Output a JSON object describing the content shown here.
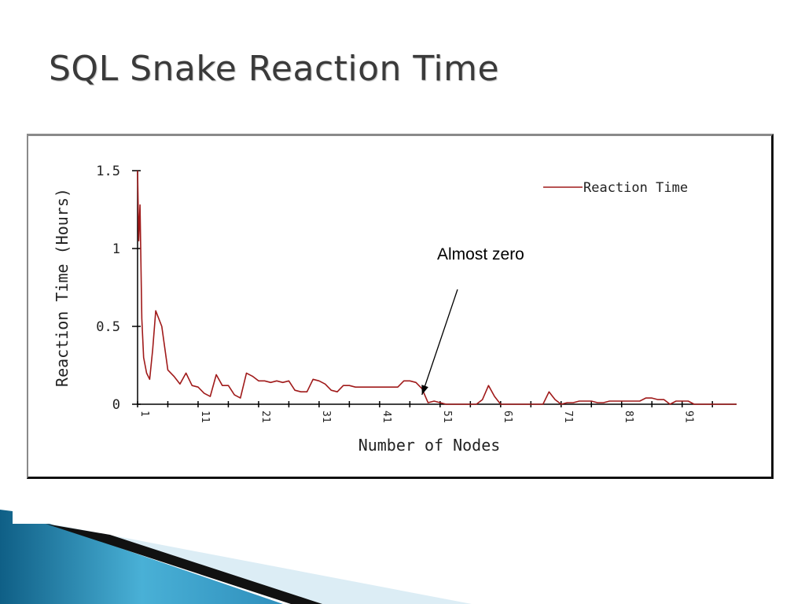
{
  "slide": {
    "title": "SQL Snake Reaction Time"
  },
  "annotation": {
    "text": "Almost zero",
    "target_x": 48,
    "target_y": 0.01
  },
  "colors": {
    "line": "#a01a1a",
    "accent_blue": "#3a9ec6",
    "accent_dark": "#111111"
  },
  "chart_data": {
    "type": "line",
    "title": "",
    "xlabel": "Number of Nodes",
    "ylabel": "Reaction Time (Hours)",
    "xlim": [
      1,
      100
    ],
    "ylim": [
      0,
      1.5
    ],
    "yticks": [
      0,
      0.5,
      1,
      1.5
    ],
    "ytick_labels": [
      "0",
      "0.5",
      "1",
      "1.5"
    ],
    "xticks": [
      1,
      11,
      21,
      31,
      41,
      51,
      61,
      71,
      81,
      91
    ],
    "xtick_labels": [
      "1",
      "11",
      "21",
      "31",
      "41",
      "51",
      "61",
      "71",
      "81",
      "91"
    ],
    "grid": false,
    "legend_position": "top-right",
    "series": [
      {
        "name": "Reaction Time",
        "points": [
          [
            1,
            1.5
          ],
          [
            1.2,
            1.05
          ],
          [
            1.4,
            1.28
          ],
          [
            1.7,
            0.55
          ],
          [
            2,
            0.3
          ],
          [
            2.5,
            0.2
          ],
          [
            3,
            0.16
          ],
          [
            3.5,
            0.35
          ],
          [
            4,
            0.6
          ],
          [
            5,
            0.5
          ],
          [
            6,
            0.22
          ],
          [
            7,
            0.18
          ],
          [
            8,
            0.13
          ],
          [
            9,
            0.2
          ],
          [
            10,
            0.12
          ],
          [
            11,
            0.11
          ],
          [
            12,
            0.07
          ],
          [
            13,
            0.05
          ],
          [
            14,
            0.19
          ],
          [
            15,
            0.12
          ],
          [
            16,
            0.12
          ],
          [
            17,
            0.06
          ],
          [
            18,
            0.04
          ],
          [
            19,
            0.2
          ],
          [
            20,
            0.18
          ],
          [
            21,
            0.15
          ],
          [
            22,
            0.15
          ],
          [
            23,
            0.14
          ],
          [
            24,
            0.15
          ],
          [
            25,
            0.14
          ],
          [
            26,
            0.15
          ],
          [
            27,
            0.09
          ],
          [
            28,
            0.08
          ],
          [
            29,
            0.08
          ],
          [
            30,
            0.16
          ],
          [
            31,
            0.15
          ],
          [
            32,
            0.13
          ],
          [
            33,
            0.09
          ],
          [
            34,
            0.08
          ],
          [
            35,
            0.12
          ],
          [
            36,
            0.12
          ],
          [
            37,
            0.11
          ],
          [
            38,
            0.11
          ],
          [
            39,
            0.11
          ],
          [
            40,
            0.11
          ],
          [
            41,
            0.11
          ],
          [
            42,
            0.11
          ],
          [
            43,
            0.11
          ],
          [
            44,
            0.11
          ],
          [
            45,
            0.15
          ],
          [
            46,
            0.15
          ],
          [
            47,
            0.14
          ],
          [
            48,
            0.1
          ],
          [
            49,
            0.01
          ],
          [
            50,
            0.02
          ],
          [
            51,
            0.01
          ],
          [
            52,
            0.0
          ],
          [
            53,
            0.0
          ],
          [
            54,
            0.0
          ],
          [
            55,
            0.0
          ],
          [
            56,
            0.0
          ],
          [
            57,
            0.0
          ],
          [
            58,
            0.03
          ],
          [
            59,
            0.12
          ],
          [
            60,
            0.05
          ],
          [
            61,
            0.0
          ],
          [
            62,
            0.0
          ],
          [
            63,
            0.0
          ],
          [
            64,
            0.0
          ],
          [
            65,
            0.0
          ],
          [
            66,
            0.0
          ],
          [
            67,
            0.0
          ],
          [
            68,
            0.0
          ],
          [
            69,
            0.08
          ],
          [
            70,
            0.03
          ],
          [
            71,
            0.0
          ],
          [
            72,
            0.01
          ],
          [
            73,
            0.01
          ],
          [
            74,
            0.02
          ],
          [
            75,
            0.02
          ],
          [
            76,
            0.02
          ],
          [
            77,
            0.01
          ],
          [
            78,
            0.01
          ],
          [
            79,
            0.02
          ],
          [
            80,
            0.02
          ],
          [
            81,
            0.02
          ],
          [
            82,
            0.02
          ],
          [
            83,
            0.02
          ],
          [
            84,
            0.02
          ],
          [
            85,
            0.04
          ],
          [
            86,
            0.04
          ],
          [
            87,
            0.03
          ],
          [
            88,
            0.03
          ],
          [
            89,
            0.0
          ],
          [
            90,
            0.02
          ],
          [
            91,
            0.02
          ],
          [
            92,
            0.02
          ],
          [
            93,
            0.0
          ],
          [
            94,
            0.0
          ],
          [
            95,
            0.0
          ],
          [
            96,
            0.0
          ],
          [
            97,
            0.0
          ],
          [
            98,
            0.0
          ],
          [
            99,
            0.0
          ],
          [
            100,
            0.0
          ]
        ]
      }
    ]
  }
}
